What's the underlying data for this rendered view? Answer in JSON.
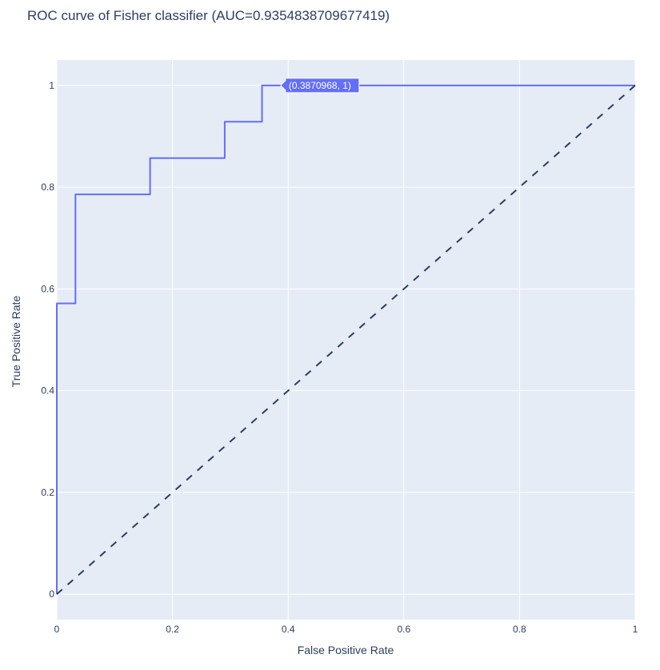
{
  "chart_data": {
    "type": "line",
    "title": "ROC curve of Fisher classifier (AUC=0.9354838709677419)",
    "xlabel": "False Positive Rate",
    "ylabel": "True Positive Rate",
    "xlim": [
      0,
      1
    ],
    "ylim": [
      -0.05,
      1.05
    ],
    "x_ticks": [
      0,
      0.2,
      0.4,
      0.6,
      0.8,
      1
    ],
    "x_tick_labels": [
      "0",
      "0.2",
      "0.4",
      "0.6",
      "0.8",
      "1"
    ],
    "y_ticks": [
      0,
      0.2,
      0.4,
      0.6,
      0.8,
      1
    ],
    "y_tick_labels": [
      "0",
      "0.2",
      "0.4",
      "0.6",
      "0.8",
      "1"
    ],
    "grid": true,
    "legend": "none",
    "series": [
      {
        "x": [
          0,
          0,
          0.032258,
          0.032258,
          0.16129,
          0.16129,
          0.290323,
          0.290323,
          0.354839,
          0.354839,
          0.387097,
          1
        ],
        "y": [
          0,
          0.571429,
          0.571429,
          0.785714,
          0.785714,
          0.857143,
          0.857143,
          0.928571,
          0.928571,
          1,
          1,
          1
        ],
        "color": "#636efa",
        "style": "solid"
      },
      {
        "x": [
          0,
          1
        ],
        "y": [
          0,
          1
        ],
        "color": "#2a3f5f",
        "style": "dash"
      }
    ],
    "hover": {
      "x": 0.387097,
      "y": 1,
      "label": "(0.3870968, 1)"
    },
    "colors": {
      "plot_bg": "#e5ecf6",
      "grid": "#ffffff",
      "text": "#2a3f5f"
    }
  }
}
